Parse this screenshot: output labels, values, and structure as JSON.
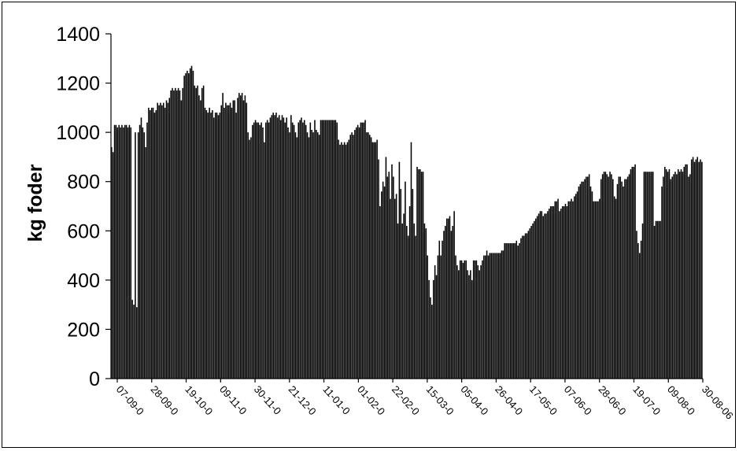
{
  "chart_data": {
    "type": "bar",
    "title": "",
    "xlabel": "",
    "ylabel": "kg foder",
    "ylim": [
      0,
      1400
    ],
    "yticks": [
      0,
      200,
      400,
      600,
      800,
      1000,
      1200,
      1400
    ],
    "xtick_labels": [
      "07-09-0",
      "28-09-0",
      "19-10-0",
      "09-11-0",
      "30-11-0",
      "21-12-0",
      "11-01-0",
      "01-02-0",
      "22-02-0",
      "15-03-0",
      "05-04-0",
      "26-04-0",
      "17-05-0",
      "07-06-0",
      "28-06-0",
      "19-07-0",
      "09-08-0",
      "30-08-06"
    ],
    "bar_color": "#000000",
    "grid": false,
    "values": [
      940,
      920,
      1030,
      1030,
      1020,
      1030,
      1020,
      1030,
      1020,
      1030,
      1030,
      1020,
      1030,
      1020,
      320,
      300,
      1000,
      290,
      1000,
      1030,
      1060,
      1020,
      1000,
      940,
      1040,
      1100,
      1090,
      1100,
      1100,
      1080,
      1090,
      1120,
      1110,
      1120,
      1110,
      1120,
      1100,
      1130,
      1120,
      1140,
      1170,
      1180,
      1170,
      1180,
      1170,
      1180,
      1170,
      1130,
      1180,
      1230,
      1240,
      1250,
      1240,
      1260,
      1270,
      1250,
      1190,
      1180,
      1190,
      1150,
      1130,
      1180,
      1190,
      1100,
      1090,
      1080,
      1100,
      1080,
      1090,
      1060,
      1080,
      1080,
      1070,
      1080,
      1110,
      1160,
      1100,
      1120,
      1110,
      1110,
      1120,
      1100,
      1130,
      1130,
      1080,
      1140,
      1160,
      1150,
      1160,
      1130,
      1150,
      1120,
      1000,
      970,
      980,
      1030,
      1040,
      1050,
      1040,
      1040,
      1030,
      1040,
      1020,
      960,
      1040,
      1050,
      1040,
      1060,
      1070,
      1080,
      1070,
      1080,
      1060,
      1070,
      1050,
      1070,
      1060,
      1040,
      1060,
      1020,
      1000,
      1070,
      1040,
      1030,
      1000,
      980,
      1040,
      1050,
      1060,
      1040,
      1050,
      1030,
      1000,
      980,
      1040,
      1010,
      1000,
      1050,
      1010,
      1000,
      990,
      1050,
      1050,
      1050,
      1050,
      1050,
      1050,
      1050,
      1050,
      1050,
      1050,
      1050,
      1040,
      970,
      950,
      960,
      950,
      960,
      950,
      960,
      970,
      990,
      1000,
      990,
      1010,
      1020,
      1030,
      1020,
      1040,
      1040,
      1040,
      1050,
      1000,
      1000,
      990,
      980,
      960,
      960,
      960,
      970,
      890,
      700,
      760,
      800,
      780,
      900,
      820,
      840,
      730,
      870,
      820,
      730,
      750,
      630,
      880,
      770,
      630,
      670,
      800,
      620,
      580,
      700,
      960,
      770,
      630,
      580,
      860,
      850,
      850,
      840,
      840,
      630,
      610,
      500,
      400,
      330,
      300,
      400,
      460,
      420,
      500,
      560,
      500,
      560,
      600,
      620,
      650,
      650,
      660,
      600,
      620,
      680,
      500,
      460,
      440,
      480,
      480,
      470,
      480,
      480,
      440,
      420,
      440,
      400,
      480,
      480,
      480,
      460,
      440,
      460,
      480,
      500,
      500,
      520,
      500,
      510,
      510,
      510,
      510,
      510,
      510,
      510,
      510,
      520,
      520,
      550,
      550,
      550,
      550,
      550,
      550,
      550,
      550,
      560,
      540,
      550,
      570,
      580,
      580,
      590,
      590,
      600,
      610,
      620,
      630,
      640,
      650,
      660,
      670,
      680,
      680,
      660,
      670,
      670,
      680,
      690,
      700,
      700,
      700,
      720,
      720,
      730,
      680,
      690,
      700,
      700,
      710,
      700,
      720,
      720,
      730,
      720,
      740,
      750,
      760,
      780,
      790,
      800,
      800,
      810,
      820,
      820,
      830,
      780,
      760,
      720,
      720,
      720,
      720,
      730,
      810,
      830,
      840,
      840,
      830,
      820,
      840,
      830,
      810,
      740,
      730,
      790,
      820,
      820,
      800,
      780,
      810,
      810,
      820,
      830,
      850,
      860,
      860,
      870,
      600,
      550,
      510,
      560,
      630,
      840,
      840,
      840,
      840,
      840,
      840,
      840,
      620,
      640,
      640,
      640,
      640,
      780,
      820,
      860,
      850,
      840,
      850,
      810,
      820,
      830,
      840,
      830,
      850,
      840,
      850,
      840,
      860,
      870,
      870,
      820,
      830,
      890,
      900,
      880,
      890,
      900,
      880,
      890,
      880
    ]
  }
}
